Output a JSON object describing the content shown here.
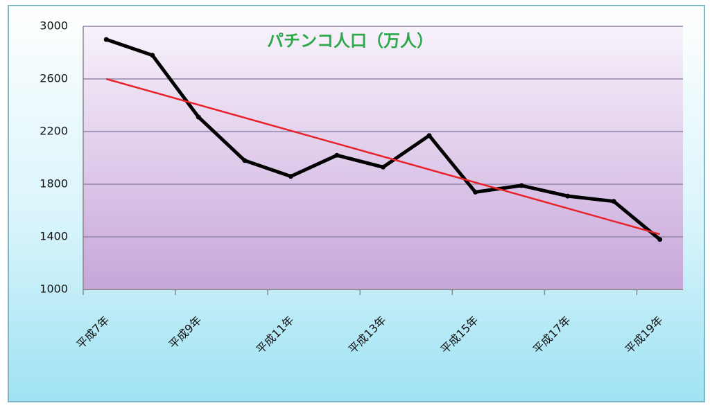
{
  "chart_data": {
    "type": "line",
    "title": "パチンコ人口（万人）",
    "categories": [
      "平成7年",
      null,
      "平成9年",
      null,
      "平成11年",
      null,
      "平成13年",
      null,
      "平成15年",
      null,
      "平成17年",
      null,
      "平成19年"
    ],
    "series": [
      {
        "color": "#000000",
        "values": [
          2900,
          2780,
          2310,
          1980,
          1860,
          2020,
          1930,
          2170,
          1740,
          1790,
          1710,
          1670,
          1380
        ]
      }
    ],
    "trend": {
      "color": "#e8222a",
      "values": [
        2600,
        1420
      ]
    },
    "ylim": [
      1000,
      3000
    ],
    "yticks": [
      1000,
      1400,
      1800,
      2200,
      2600,
      3000
    ],
    "grid": true
  }
}
